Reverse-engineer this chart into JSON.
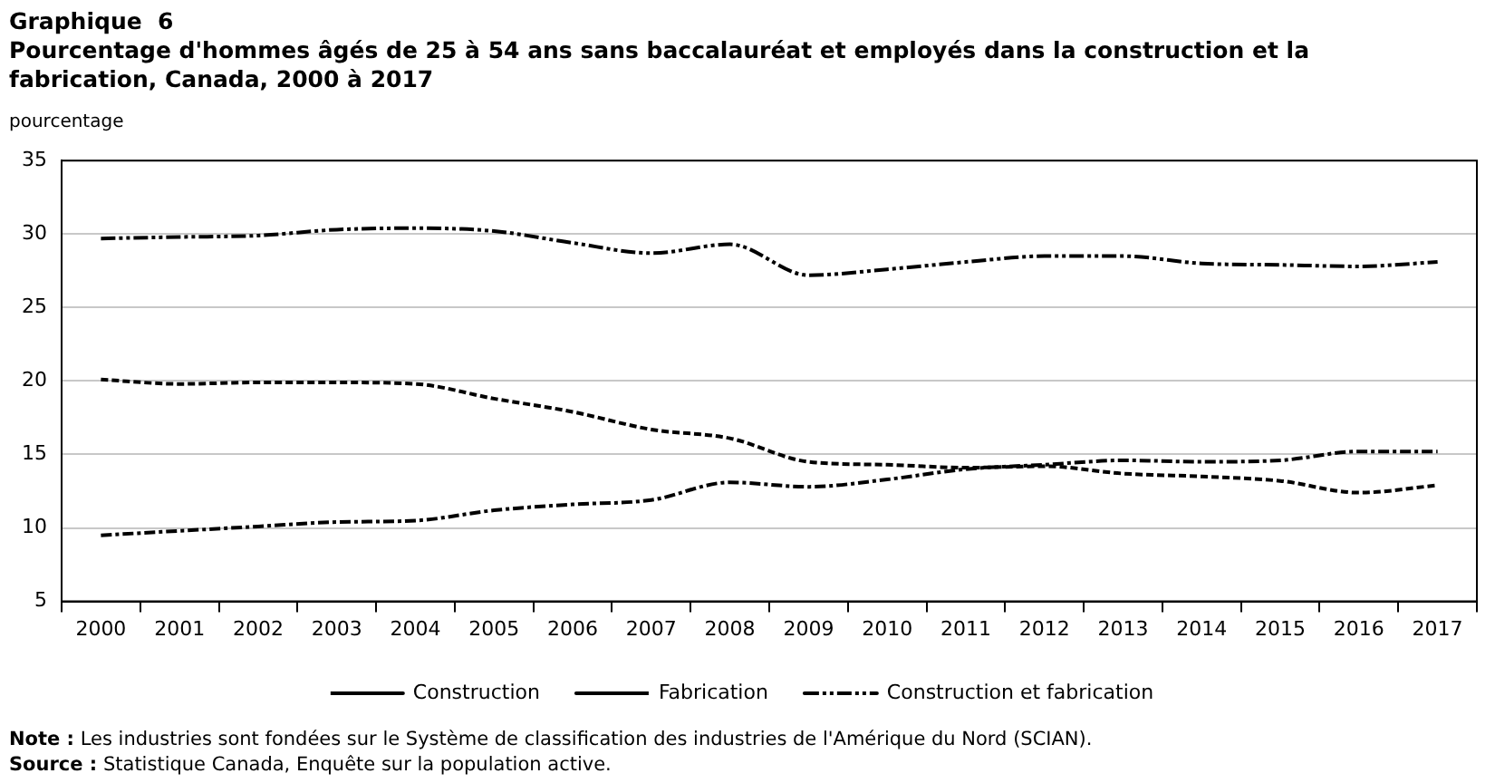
{
  "chart_data": {
    "type": "line",
    "title": "Graphique  6",
    "subtitle": "Pourcentage d'hommes âgés de 25 à 54 ans sans baccalauréat et employés dans la construction et la fabrication, Canada, 2000 à 2017",
    "ylabel": "pourcentage",
    "categories": [
      "2000",
      "2001",
      "2002",
      "2003",
      "2004",
      "2005",
      "2006",
      "2007",
      "2008",
      "2009",
      "2010",
      "2011",
      "2012",
      "2013",
      "2014",
      "2015",
      "2016",
      "2017"
    ],
    "series": [
      {
        "name": "Construction",
        "color": "#000000",
        "line_style": "dashdot",
        "values": [
          9.5,
          9.8,
          10.1,
          10.4,
          10.5,
          11.2,
          11.6,
          11.9,
          13.1,
          12.8,
          13.3,
          14.0,
          14.3,
          14.6,
          14.5,
          14.6,
          15.2,
          15.2
        ]
      },
      {
        "name": "Fabrication",
        "color": "#000000",
        "line_style": "dashed",
        "values": [
          20.1,
          19.8,
          19.9,
          19.9,
          19.8,
          18.8,
          17.9,
          16.7,
          16.1,
          14.5,
          14.3,
          14.1,
          14.2,
          13.7,
          13.5,
          13.2,
          12.4,
          12.9
        ]
      },
      {
        "name": "Construction et fabrication",
        "color": "#000000",
        "line_style": "dashdotdot",
        "values": [
          29.7,
          29.8,
          29.9,
          30.3,
          30.4,
          30.2,
          29.4,
          28.7,
          29.3,
          27.2,
          27.6,
          28.1,
          28.5,
          28.5,
          28.0,
          27.9,
          27.8,
          28.1
        ]
      }
    ],
    "ylim": [
      5,
      35
    ],
    "yticks": [
      5,
      10,
      15,
      20,
      25,
      30,
      35
    ],
    "grid": "y",
    "legend": "bottom",
    "marker": "none",
    "annotations": [
      "Note : Les industries sont fondées sur le Système de classification des industries de l'Amérique du Nord (SCIAN).",
      "Source : Statistique Canada, Enquête sur la population active."
    ]
  }
}
